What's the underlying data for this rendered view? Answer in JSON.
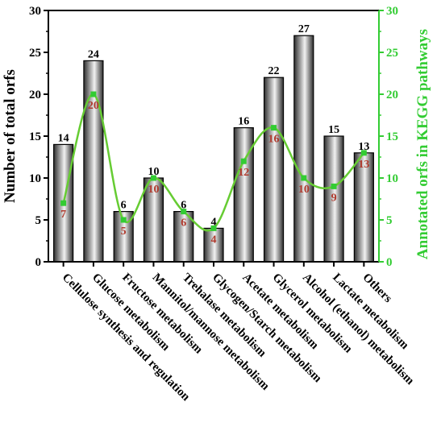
{
  "chart_data": {
    "type": "bar",
    "categories": [
      "Cellulose synthesis and regulation",
      "Glucose metabolism",
      "Fructose metabolism",
      "Mannitol/mannose metabolism",
      "Trehalase metabolism",
      "Glycogen/Starch metabolism",
      "Acetate metabolism",
      "Glycerol metabolism",
      "Alcohol (ethanol) metabolism",
      "Lactate metabolism",
      "Others"
    ],
    "series": [
      {
        "name": "Number of total orfs",
        "type": "bar",
        "axis": "left",
        "values": [
          14,
          24,
          6,
          10,
          6,
          4,
          16,
          22,
          27,
          15,
          13
        ],
        "labels": [
          "14",
          "24",
          "6",
          "10",
          "6",
          "4",
          "16",
          "22",
          "27",
          "15",
          "13"
        ]
      },
      {
        "name": "Annotated orfs in KEGG pathways",
        "type": "line",
        "axis": "right",
        "values": [
          7,
          20,
          5,
          10,
          6,
          4,
          12,
          16,
          10,
          9,
          13
        ],
        "labels": [
          "7",
          "20",
          "5",
          "10",
          "6",
          "4",
          "12",
          "16",
          "10",
          "9",
          "13"
        ]
      }
    ],
    "ylabel": "Number of total orfs",
    "y2label": "Annotated orfs in KEGG pathways",
    "ylim": [
      0,
      30
    ],
    "y2lim": [
      0,
      30
    ],
    "yticks": [
      "0",
      "5",
      "10",
      "15",
      "20",
      "25",
      "30"
    ],
    "y2ticks": [
      "0",
      "5",
      "10",
      "15",
      "20",
      "25",
      "30"
    ],
    "colors": {
      "bar_fill_dark": "#2e2e2e",
      "bar_fill_light": "#f2f2f2",
      "bar_stroke": "#000000",
      "line": "#66cc33",
      "marker": "#33cc33",
      "line_label": "#b03a2e",
      "bar_label": "#000000",
      "right_axis": "#33cc33",
      "left_axis": "#000000"
    },
    "grid": false
  }
}
